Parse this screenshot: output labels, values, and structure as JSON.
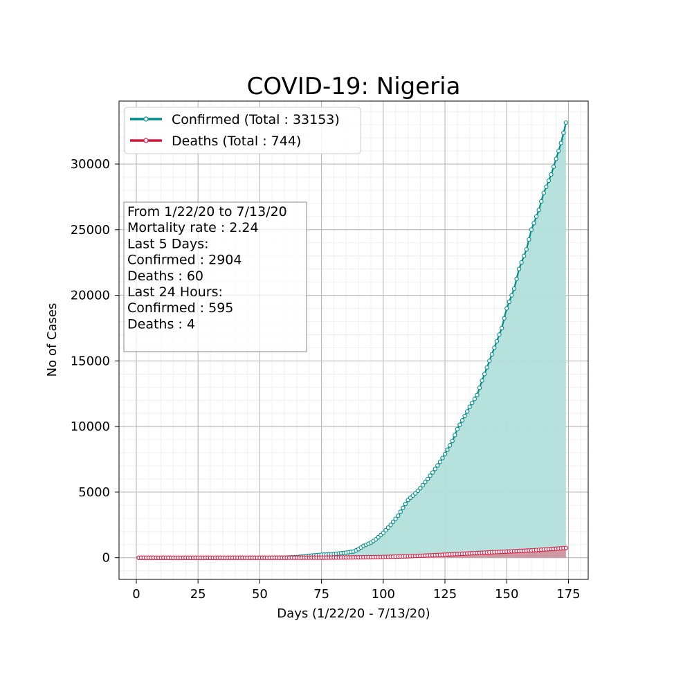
{
  "chart_data": {
    "type": "area",
    "title": "COVID-19: Nigeria",
    "xlabel": "Days (1/22/20 - 7/13/20)",
    "ylabel": "No of Cases",
    "xlim": [
      -7,
      183
    ],
    "ylim": [
      -1650,
      34800
    ],
    "xticks": [
      0,
      25,
      50,
      75,
      100,
      125,
      150,
      175
    ],
    "yticks": [
      0,
      5000,
      10000,
      15000,
      20000,
      25000,
      30000
    ],
    "grid": true,
    "legend_position": "top-left",
    "series": [
      {
        "name": "Confirmed (Total : 33153)",
        "color": "#008b8b",
        "fill": "#b2dfdb",
        "knots": [
          [
            1,
            0
          ],
          [
            35,
            0
          ],
          [
            60,
            10
          ],
          [
            65,
            50
          ],
          [
            70,
            150
          ],
          [
            75,
            230
          ],
          [
            80,
            280
          ],
          [
            85,
            390
          ],
          [
            88,
            480
          ],
          [
            90,
            650
          ],
          [
            92,
            900
          ],
          [
            95,
            1150
          ],
          [
            97,
            1400
          ],
          [
            100,
            1900
          ],
          [
            103,
            2500
          ],
          [
            106,
            3200
          ],
          [
            108,
            3800
          ],
          [
            110,
            4400
          ],
          [
            113,
            4900
          ],
          [
            115,
            5300
          ],
          [
            118,
            6000
          ],
          [
            120,
            6500
          ],
          [
            123,
            7300
          ],
          [
            125,
            7900
          ],
          [
            128,
            8900
          ],
          [
            130,
            9800
          ],
          [
            133,
            10800
          ],
          [
            135,
            11500
          ],
          [
            138,
            12400
          ],
          [
            140,
            13500
          ],
          [
            143,
            15000
          ],
          [
            145,
            16000
          ],
          [
            148,
            17500
          ],
          [
            150,
            19000
          ],
          [
            153,
            20500
          ],
          [
            155,
            22000
          ],
          [
            158,
            23500
          ],
          [
            160,
            25000
          ],
          [
            163,
            26500
          ],
          [
            165,
            27800
          ],
          [
            168,
            29200
          ],
          [
            170,
            30400
          ],
          [
            172,
            31600
          ],
          [
            174,
            33153
          ]
        ]
      },
      {
        "name": "Deaths (Total : 744)",
        "color": "#dc143c",
        "fill": "#d38c99",
        "knots": [
          [
            1,
            0
          ],
          [
            60,
            0
          ],
          [
            75,
            5
          ],
          [
            90,
            30
          ],
          [
            100,
            60
          ],
          [
            110,
            110
          ],
          [
            120,
            190
          ],
          [
            130,
            280
          ],
          [
            140,
            380
          ],
          [
            150,
            470
          ],
          [
            160,
            560
          ],
          [
            170,
            690
          ],
          [
            174,
            744
          ]
        ]
      }
    ],
    "annotation": [
      "From 1/22/20 to 7/13/20",
      "Mortality rate : 2.24",
      "Last 5 Days:",
      "Confirmed : 2904",
      "Deaths : 60",
      "Last 24 Hours:",
      "Confirmed : 595",
      "Deaths : 4"
    ]
  }
}
